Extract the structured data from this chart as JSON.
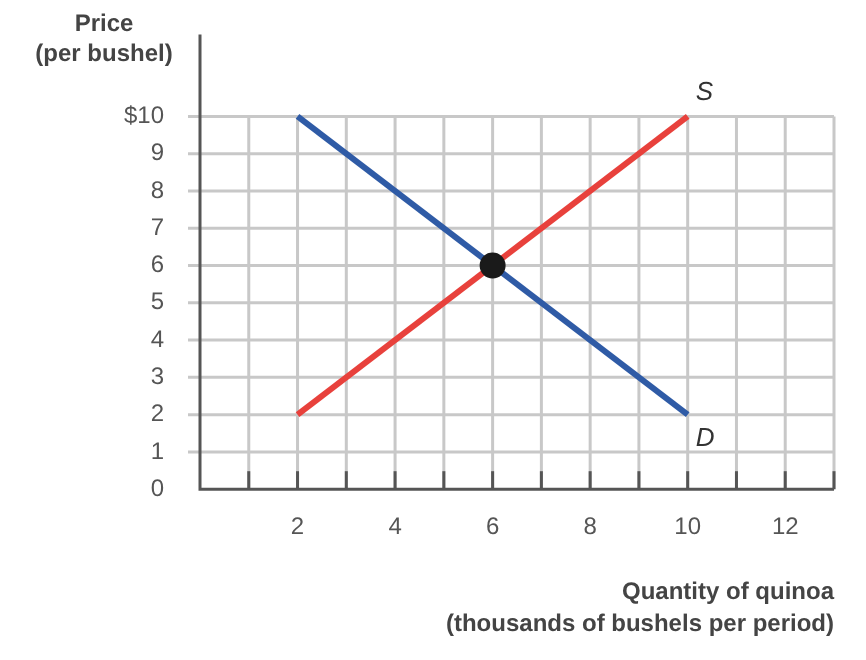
{
  "chart_data": {
    "type": "line",
    "xlabel": "Quantity of quinoa\n(thousands of bushels per period)",
    "ylabel": "Price\n(per bushel)",
    "xlim": [
      0,
      13
    ],
    "ylim": [
      0,
      12.2
    ],
    "xticks": [
      {
        "value": 1,
        "label": null
      },
      2,
      {
        "value": 3,
        "label": null
      },
      4,
      {
        "value": 5,
        "label": null
      },
      6,
      {
        "value": 7,
        "label": null
      },
      8,
      {
        "value": 9,
        "label": null
      },
      10,
      {
        "value": 11,
        "label": null
      },
      12,
      {
        "value": 13,
        "label": null
      }
    ],
    "yticks": [
      0,
      1,
      2,
      3,
      4,
      5,
      6,
      7,
      8,
      9,
      {
        "value": 10,
        "label": "$10"
      }
    ],
    "grid": true,
    "legend": false,
    "line_style": "solid",
    "series": [
      {
        "name": "S",
        "color": "#e8413c",
        "x": [
          2,
          10
        ],
        "values": [
          2,
          10
        ],
        "marker": "none"
      },
      {
        "name": "D",
        "color": "#2f5ba6",
        "x": [
          2,
          10
        ],
        "values": [
          10,
          2
        ],
        "marker": "none"
      },
      {
        "type": "scatter",
        "color": "#1a1a1a",
        "x": [
          6
        ],
        "values": [
          6
        ],
        "marker": "circle"
      }
    ]
  }
}
